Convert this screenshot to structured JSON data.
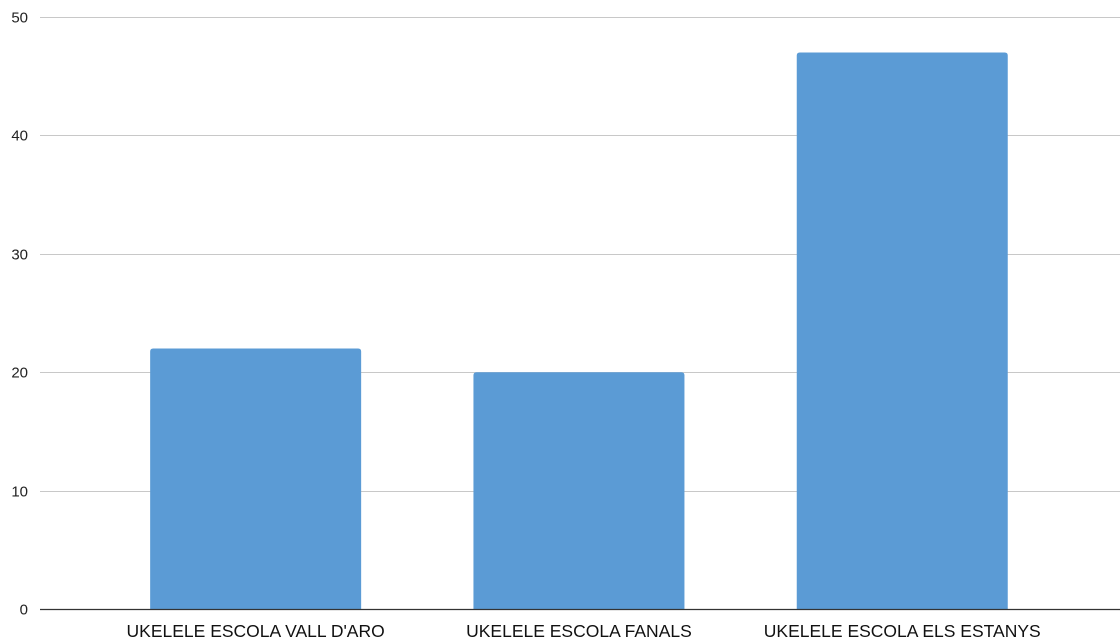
{
  "chart_data": {
    "type": "bar",
    "title": "",
    "xlabel": "",
    "ylabel": "",
    "categories": [
      "UKELELE ESCOLA VALL D'ARO",
      "UKELELE ESCOLA FANALS",
      "UKELELE ESCOLA ELS ESTANYS"
    ],
    "values": [
      22,
      20,
      47
    ],
    "ylim": [
      0,
      50
    ],
    "yticks": [
      "0",
      "10",
      "20",
      "30",
      "40",
      "50"
    ],
    "grid": true,
    "legend": "none",
    "bar_color": "#5b9bd5"
  }
}
